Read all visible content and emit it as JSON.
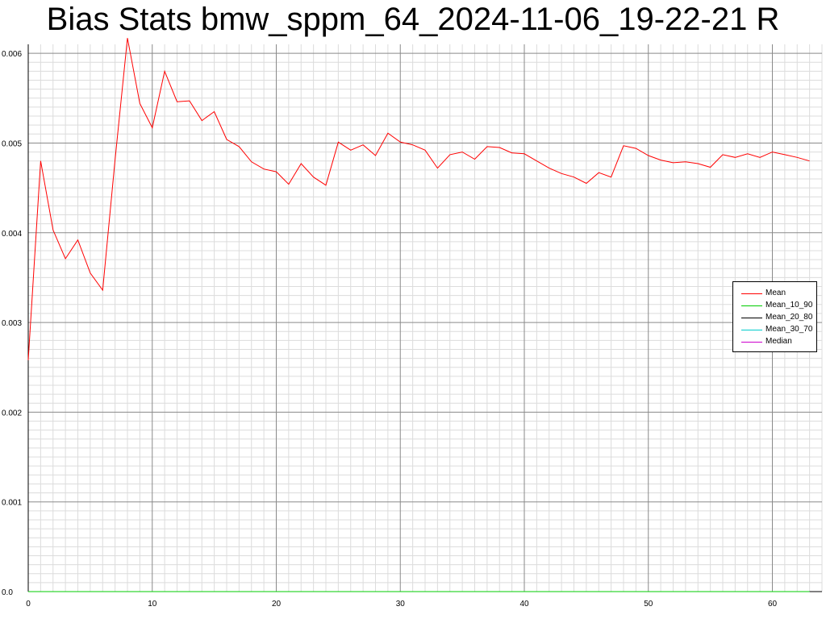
{
  "chart_data": {
    "type": "line",
    "title": "Bias Stats bmw_sppm_64_2024-11-06_19-22-21 R",
    "xlabel": "",
    "ylabel": "",
    "xlim": [
      0,
      64
    ],
    "ylim": [
      0,
      0.0061
    ],
    "x_ticks": [
      "0",
      "10",
      "20",
      "30",
      "40",
      "50",
      "60"
    ],
    "y_ticks": [
      "0.0",
      "0.001",
      "0.002",
      "0.003",
      "0.004",
      "0.005",
      "0.006"
    ],
    "grid": true,
    "legend_position": "right",
    "x": [
      0,
      1,
      2,
      3,
      4,
      5,
      6,
      7,
      8,
      9,
      10,
      11,
      12,
      13,
      14,
      15,
      16,
      17,
      18,
      19,
      20,
      21,
      22,
      23,
      24,
      25,
      26,
      27,
      28,
      29,
      30,
      31,
      32,
      33,
      34,
      35,
      36,
      37,
      38,
      39,
      40,
      41,
      42,
      43,
      44,
      45,
      46,
      47,
      48,
      49,
      50,
      51,
      52,
      53,
      54,
      55,
      56,
      57,
      58,
      59,
      60,
      61,
      62,
      63
    ],
    "series": [
      {
        "name": "Mean",
        "color": "#ff0000",
        "values": [
          0.00258,
          0.0048,
          0.00403,
          0.00371,
          0.00392,
          0.00355,
          0.00336,
          0.00481,
          0.00617,
          0.00544,
          0.00517,
          0.0058,
          0.00546,
          0.00547,
          0.00525,
          0.00535,
          0.00504,
          0.00496,
          0.00479,
          0.00471,
          0.00468,
          0.00454,
          0.00477,
          0.00462,
          0.00453,
          0.00501,
          0.00492,
          0.00498,
          0.00486,
          0.00511,
          0.00501,
          0.00498,
          0.00492,
          0.00472,
          0.00487,
          0.0049,
          0.00482,
          0.00496,
          0.00495,
          0.00489,
          0.00488,
          0.0048,
          0.00472,
          0.00466,
          0.00462,
          0.00455,
          0.00467,
          0.00462,
          0.00497,
          0.00494,
          0.00486,
          0.00481,
          0.00478,
          0.00479,
          0.00477,
          0.00473,
          0.00487,
          0.00484,
          0.00488,
          0.00484,
          0.0049,
          0.00487,
          0.00484,
          0.0048
        ]
      },
      {
        "name": "Mean_10_90",
        "color": "#00cc00",
        "values": [
          0,
          0,
          0,
          0,
          0,
          0,
          0,
          0,
          0,
          0,
          0,
          0,
          0,
          0,
          0,
          0,
          0,
          0,
          0,
          0,
          0,
          0,
          0,
          0,
          0,
          0,
          0,
          0,
          0,
          0,
          0,
          0,
          0,
          0,
          0,
          0,
          0,
          0,
          0,
          0,
          0,
          0,
          0,
          0,
          0,
          0,
          0,
          0,
          0,
          0,
          0,
          0,
          0,
          0,
          0,
          0,
          0,
          0,
          0,
          0,
          0,
          0,
          0,
          0
        ]
      },
      {
        "name": "Mean_20_80",
        "color": "#000000",
        "values": [
          0,
          0,
          0,
          0,
          0,
          0,
          0,
          0,
          0,
          0,
          0,
          0,
          0,
          0,
          0,
          0,
          0,
          0,
          0,
          0,
          0,
          0,
          0,
          0,
          0,
          0,
          0,
          0,
          0,
          0,
          0,
          0,
          0,
          0,
          0,
          0,
          0,
          0,
          0,
          0,
          0,
          0,
          0,
          0,
          0,
          0,
          0,
          0,
          0,
          0,
          0,
          0,
          0,
          0,
          0,
          0,
          0,
          0,
          0,
          0,
          0,
          0,
          0,
          0
        ]
      },
      {
        "name": "Mean_30_70",
        "color": "#00cccc",
        "values": [
          0,
          0,
          0,
          0,
          0,
          0,
          0,
          0,
          0,
          0,
          0,
          0,
          0,
          0,
          0,
          0,
          0,
          0,
          0,
          0,
          0,
          0,
          0,
          0,
          0,
          0,
          0,
          0,
          0,
          0,
          0,
          0,
          0,
          0,
          0,
          0,
          0,
          0,
          0,
          0,
          0,
          0,
          0,
          0,
          0,
          0,
          0,
          0,
          0,
          0,
          0,
          0,
          0,
          0,
          0,
          0,
          0,
          0,
          0,
          0,
          0,
          0,
          0,
          0
        ]
      },
      {
        "name": "Median",
        "color": "#cc00cc",
        "values": [
          0,
          0,
          0,
          0,
          0,
          0,
          0,
          0,
          0,
          0,
          0,
          0,
          0,
          0,
          0,
          0,
          0,
          0,
          0,
          0,
          0,
          0,
          0,
          0,
          0,
          0,
          0,
          0,
          0,
          0,
          0,
          0,
          0,
          0,
          0,
          0,
          0,
          0,
          0,
          0,
          0,
          0,
          0,
          0,
          0,
          0,
          0,
          0,
          0,
          0,
          0,
          0,
          0,
          0,
          0,
          0,
          0,
          0,
          0,
          0,
          0,
          0,
          0,
          0
        ]
      }
    ]
  }
}
